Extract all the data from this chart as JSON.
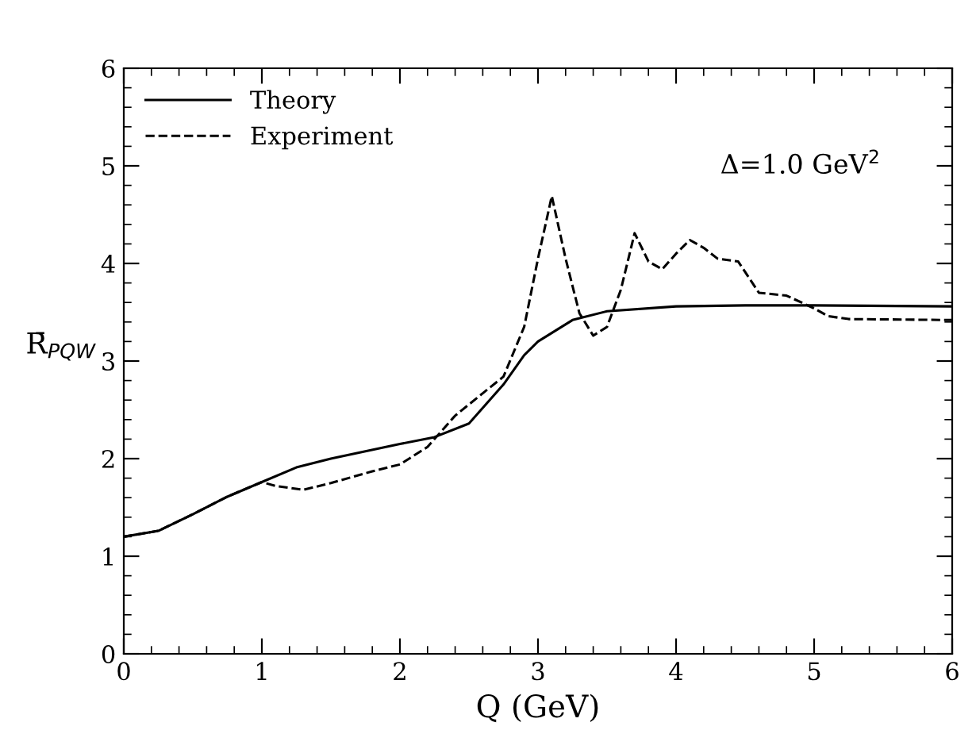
{
  "chart_data": {
    "type": "line",
    "xlabel": "Q (GeV)",
    "ylabel": "R̄$_{PQW}$",
    "annotations": [
      "Δ=1.0 GeV$^{2}$"
    ],
    "xlim": [
      0,
      6
    ],
    "ylim": [
      0,
      6
    ],
    "xticks": [
      0,
      1,
      2,
      3,
      4,
      5,
      6
    ],
    "yticks": [
      0,
      1,
      2,
      3,
      4,
      5,
      6
    ],
    "grid": false,
    "legend": "top left",
    "series": [
      {
        "name": "Theory",
        "color": "#000000",
        "line_style": "solid",
        "x": [
          0,
          0.25,
          0.5,
          0.75,
          1.0,
          1.25,
          1.5,
          2.0,
          2.25,
          2.5,
          2.75,
          2.9,
          3.0,
          3.25,
          3.5,
          4.0,
          4.5,
          5.0,
          6.0
        ],
        "values": [
          1.2,
          1.26,
          1.43,
          1.61,
          1.76,
          1.91,
          2.0,
          2.15,
          2.22,
          2.36,
          2.76,
          3.06,
          3.2,
          3.42,
          3.51,
          3.56,
          3.57,
          3.57,
          3.56
        ]
      },
      {
        "name": "Experiment",
        "color": "#000000",
        "line_style": "dashed",
        "x": [
          0,
          0.25,
          0.5,
          0.75,
          1.0,
          1.1,
          1.3,
          1.5,
          1.8,
          2.0,
          2.2,
          2.4,
          2.6,
          2.75,
          2.9,
          3.0,
          3.1,
          3.2,
          3.3,
          3.4,
          3.5,
          3.6,
          3.7,
          3.8,
          3.9,
          4.0,
          4.1,
          4.2,
          4.3,
          4.45,
          4.6,
          4.8,
          5.0,
          5.1,
          5.25,
          6.0
        ],
        "values": [
          1.2,
          1.26,
          1.43,
          1.61,
          1.76,
          1.72,
          1.68,
          1.75,
          1.87,
          1.94,
          2.12,
          2.44,
          2.67,
          2.84,
          3.35,
          4.05,
          4.69,
          4.05,
          3.49,
          3.26,
          3.35,
          3.73,
          4.31,
          4.02,
          3.94,
          4.1,
          4.24,
          4.16,
          4.05,
          4.02,
          3.7,
          3.67,
          3.54,
          3.46,
          3.43,
          3.42
        ]
      }
    ]
  }
}
